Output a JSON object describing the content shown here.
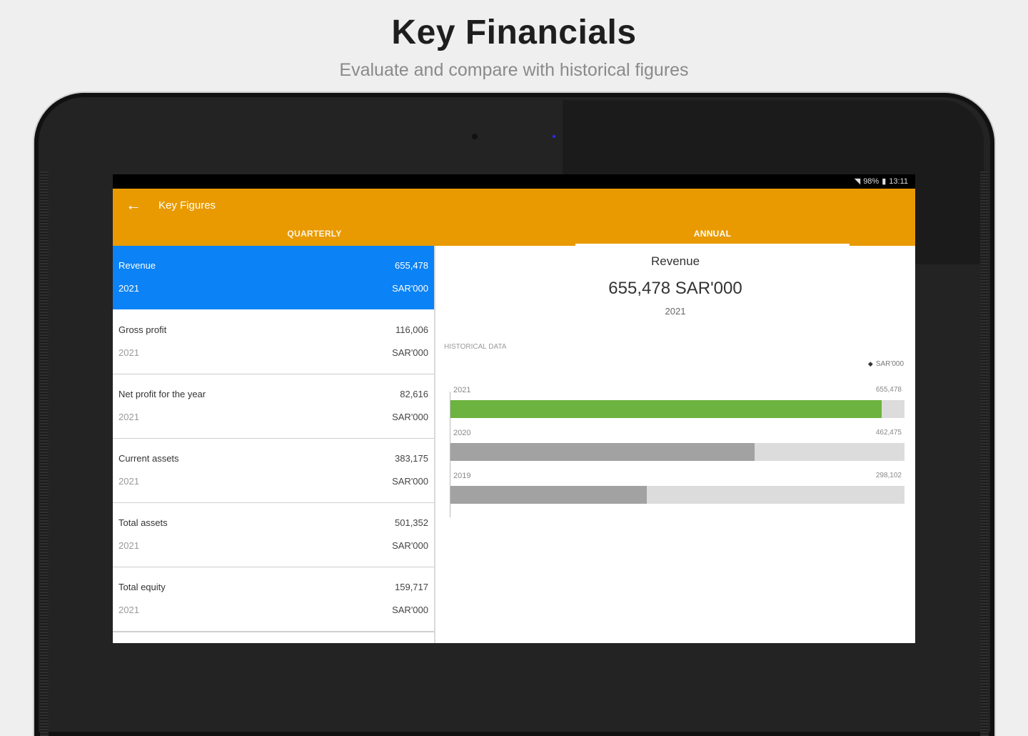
{
  "promo": {
    "title": "Key Financials",
    "subtitle": "Evaluate and compare with historical figures"
  },
  "statusbar": {
    "battery": "98%",
    "time": "13:11"
  },
  "appbar": {
    "title": "Key Figures",
    "tabs": [
      {
        "label": "QUARTERLY",
        "selected": false
      },
      {
        "label": "ANNUAL",
        "selected": true
      }
    ]
  },
  "list": {
    "items": [
      {
        "name": "Revenue",
        "year": "2021",
        "value": "655,478",
        "unit": "SAR'000",
        "selected": true
      },
      {
        "name": "Gross profit",
        "year": "2021",
        "value": "116,006",
        "unit": "SAR'000",
        "selected": false
      },
      {
        "name": "Net profit for the year",
        "year": "2021",
        "value": "82,616",
        "unit": "SAR'000",
        "selected": false
      },
      {
        "name": "Current assets",
        "year": "2021",
        "value": "383,175",
        "unit": "SAR'000",
        "selected": false
      },
      {
        "name": "Total assets",
        "year": "2021",
        "value": "501,352",
        "unit": "SAR'000",
        "selected": false
      },
      {
        "name": "Total equity",
        "year": "2021",
        "value": "159,717",
        "unit": "SAR'000",
        "selected": false
      }
    ]
  },
  "detail": {
    "title": "Revenue",
    "value": "655,478 SAR'000",
    "year": "2021",
    "historical_label": "HISTORICAL DATA",
    "legend": "SAR'000"
  },
  "chart_data": {
    "type": "bar",
    "orientation": "horizontal",
    "categories": [
      "2021",
      "2020",
      "2019"
    ],
    "series": [
      {
        "name": "SAR'000",
        "values": [
          655478,
          462475,
          298102
        ]
      }
    ],
    "value_labels": [
      "655,478",
      "462,475",
      "298,102"
    ],
    "xlim": [
      0,
      690000
    ],
    "colors": {
      "current": "#6cb33f",
      "previous": "#a2a2a2",
      "track": "#dcdcdc"
    }
  }
}
